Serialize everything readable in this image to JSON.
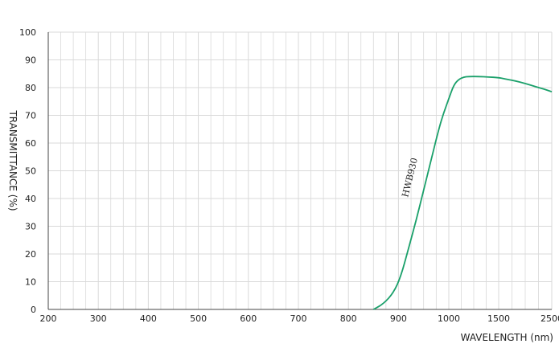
{
  "chart_data": {
    "type": "line",
    "title": "",
    "xlabel": "WAVELENGTH (nm)",
    "ylabel": "TRANSMITTANCE  (%)",
    "x_tick_labels": [
      "200",
      "300",
      "400",
      "500",
      "600",
      "700",
      "800",
      "900",
      "1000",
      "1500",
      "2500"
    ],
    "y_tick_labels": [
      "0",
      "10",
      "20",
      "30",
      "40",
      "50",
      "60",
      "70",
      "80",
      "90",
      "100"
    ],
    "ylim": [
      0,
      100
    ],
    "grid": true,
    "line_color": "#1aa06a",
    "grid_color": "#d9d9d9",
    "series": [
      {
        "name": "HWB930",
        "x": [
          850,
          870,
          890,
          905,
          920,
          935,
          950,
          965,
          980,
          990,
          1000,
          1050,
          1100,
          1150,
          1200,
          1300,
          1400,
          1500,
          1600,
          1800,
          2000,
          2200,
          2400,
          2500
        ],
        "y": [
          0,
          2,
          6,
          12,
          22,
          32,
          43,
          54,
          65,
          71,
          76,
          81,
          83,
          83.8,
          84,
          84,
          83.8,
          83.6,
          83.2,
          82.5,
          81.5,
          80.3,
          79.2,
          78.5
        ]
      }
    ]
  }
}
